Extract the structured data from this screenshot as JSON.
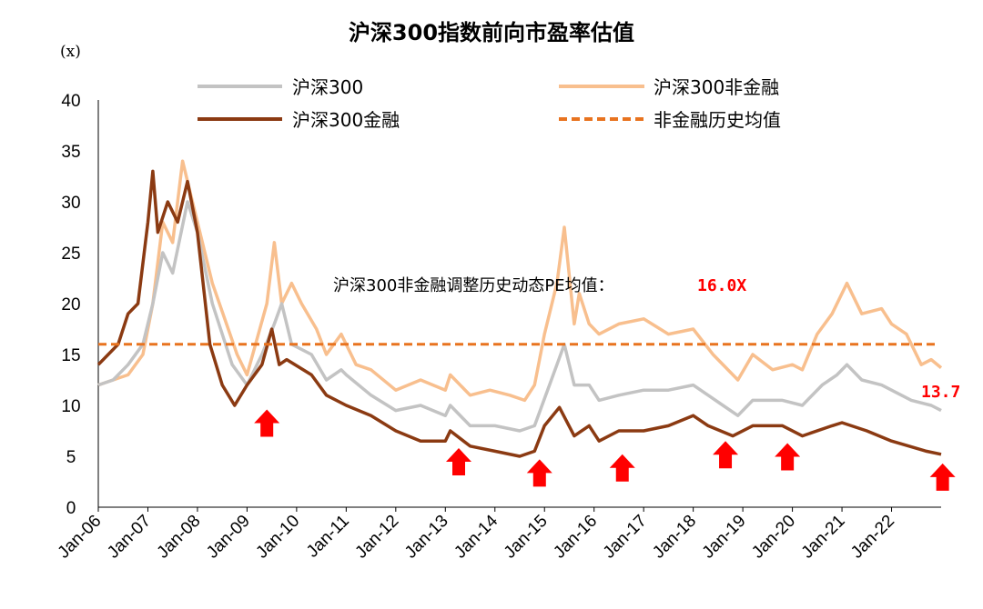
{
  "chart_data": {
    "type": "line",
    "title": "沪深300指数前向市盈率估值",
    "ylabel": "(x)",
    "xlabel": "",
    "ylim": [
      0,
      40
    ],
    "xlim": [
      2006,
      2023
    ],
    "yticks": [
      "0",
      "5",
      "10",
      "15",
      "20",
      "25",
      "30",
      "35",
      "40"
    ],
    "xticks": [
      "Jan-06",
      "Jan-07",
      "Jan-08",
      "Jan-09",
      "Jan-10",
      "Jan-11",
      "Jan-12",
      "Jan-13",
      "Jan-14",
      "Jan-15",
      "Jan-16",
      "Jan-17",
      "Jan-18",
      "Jan-19",
      "Jan-20",
      "Jan-21",
      "Jan-22"
    ],
    "grid": false,
    "legend_position": "top",
    "series": [
      {
        "name": "沪深300",
        "color": "#c3c3c3",
        "x": [
          2006,
          2006.3,
          2006.6,
          2006.9,
          2007.1,
          2007.3,
          2007.5,
          2007.8,
          2008,
          2008.3,
          2008.7,
          2009,
          2009.3,
          2009.55,
          2009.7,
          2009.9,
          2010.3,
          2010.6,
          2010.9,
          2011,
          2011.5,
          2012,
          2012.5,
          2013,
          2013.1,
          2013.5,
          2014,
          2014.5,
          2014.8,
          2015.1,
          2015.25,
          2015.4,
          2015.6,
          2015.9,
          2016.1,
          2016.5,
          2017,
          2017.5,
          2018,
          2018.3,
          2018.6,
          2018.9,
          2019.2,
          2019.8,
          2020.2,
          2020.6,
          2020.9,
          2021.1,
          2021.4,
          2021.8,
          2022,
          2022.4,
          2022.8,
          2023
        ],
        "values": [
          12,
          12.5,
          14,
          16,
          20,
          25,
          23,
          30,
          27,
          20,
          14,
          12,
          15,
          18,
          20,
          16,
          15,
          12.5,
          13.5,
          13,
          11,
          9.5,
          10,
          9,
          10,
          8,
          8,
          7.5,
          8,
          12,
          14,
          16,
          12,
          12,
          10.5,
          11,
          11.5,
          11.5,
          12,
          11,
          10,
          9,
          10.5,
          10.5,
          10,
          12,
          13,
          14,
          12.5,
          12,
          11.5,
          10.5,
          10,
          9.5
        ]
      },
      {
        "name": "沪深300非金融",
        "color": "#f8bf8e",
        "x": [
          2006,
          2006.3,
          2006.6,
          2006.9,
          2007.1,
          2007.3,
          2007.5,
          2007.7,
          2008,
          2008.3,
          2008.8,
          2009,
          2009.4,
          2009.55,
          2009.7,
          2009.9,
          2010.1,
          2010.4,
          2010.6,
          2010.9,
          2011.2,
          2011.5,
          2012,
          2012.5,
          2013,
          2013.1,
          2013.5,
          2013.9,
          2014.3,
          2014.6,
          2014.8,
          2015.0,
          2015.25,
          2015.4,
          2015.6,
          2015.7,
          2015.9,
          2016.1,
          2016.5,
          2017,
          2017.5,
          2018,
          2018.4,
          2018.9,
          2019.2,
          2019.6,
          2020,
          2020.2,
          2020.5,
          2020.8,
          2021.1,
          2021.4,
          2021.8,
          2022,
          2022.3,
          2022.6,
          2022.8,
          2023
        ],
        "values": [
          12,
          12.5,
          13,
          15,
          20,
          28,
          26,
          34,
          28,
          22,
          15,
          13,
          20,
          26,
          20,
          22,
          20,
          17.5,
          15,
          17,
          14,
          13.5,
          11.5,
          12.5,
          11.5,
          13,
          11,
          11.5,
          11,
          10.5,
          12,
          17,
          22,
          27.5,
          18,
          21,
          18,
          17,
          18,
          18.5,
          17,
          17.5,
          15,
          12.5,
          15,
          13.5,
          14,
          13.5,
          17,
          19,
          22,
          19,
          19.5,
          18,
          17,
          14,
          14.5,
          13.7
        ]
      },
      {
        "name": "沪深300金融",
        "color": "#8b3a12",
        "x": [
          2006,
          2006.2,
          2006.4,
          2006.6,
          2006.8,
          2007.0,
          2007.1,
          2007.2,
          2007.4,
          2007.6,
          2007.8,
          2008,
          2008.25,
          2008.5,
          2008.75,
          2009,
          2009.3,
          2009.5,
          2009.65,
          2009.8,
          2010.3,
          2010.6,
          2011,
          2011.5,
          2012,
          2012.5,
          2013,
          2013.1,
          2013.5,
          2014,
          2014.5,
          2014.8,
          2015.0,
          2015.3,
          2015.6,
          2015.9,
          2016.1,
          2016.5,
          2017,
          2017.5,
          2018,
          2018.3,
          2018.8,
          2019.2,
          2019.8,
          2020.2,
          2020.8,
          2021,
          2021.5,
          2022,
          2022.7,
          2023
        ],
        "values": [
          14,
          15,
          16,
          19,
          20,
          28,
          33,
          27,
          30,
          28,
          32,
          27,
          16,
          12,
          10,
          12,
          14,
          17.5,
          14,
          14.5,
          13,
          11,
          10,
          9,
          7.5,
          6.5,
          6.5,
          7.5,
          6,
          5.5,
          5,
          5.5,
          8,
          9.8,
          7,
          8,
          6.5,
          7.5,
          7.5,
          8,
          9,
          8,
          7,
          8,
          8,
          7,
          8,
          8.3,
          7.5,
          6.5,
          5.5,
          5.2
        ]
      }
    ],
    "reference_line": {
      "name": "非金融历史均值",
      "value": 16.0,
      "color": "#e8731f",
      "style": "dashed"
    },
    "annotations": {
      "mean_label": "沪深300非金融调整历史动态PE均值：",
      "mean_value": "16.0X",
      "last_value": "13.7"
    },
    "arrows": {
      "color": "#ff0000",
      "x": [
        2009.4,
        2013.27,
        2014.9,
        2016.57,
        2018.65,
        2019.9,
        2023.03
      ],
      "tip_y": [
        9.6,
        5.8,
        4.7,
        5.2,
        6.5,
        6.3,
        4.3
      ]
    }
  }
}
